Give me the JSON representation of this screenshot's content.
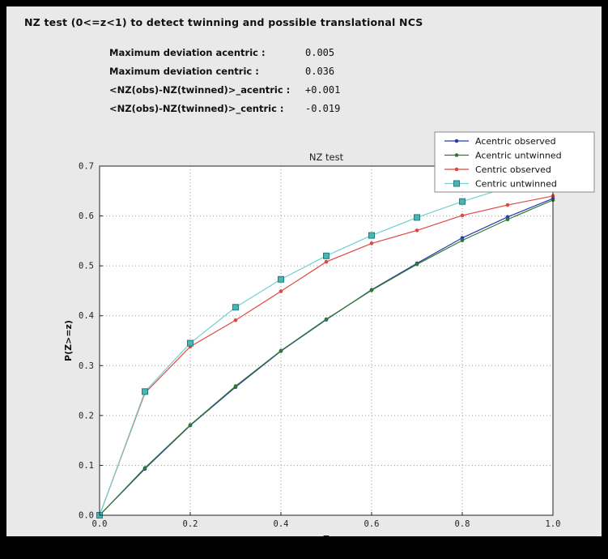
{
  "header": {
    "title": "NZ test (0<=z<1) to detect twinning and possible translational NCS"
  },
  "stats": [
    {
      "label": "Maximum deviation acentric :",
      "value": "0.005"
    },
    {
      "label": "Maximum deviation centric :",
      "value": "0.036"
    },
    {
      "label": "<NZ(obs)-NZ(twinned)>_acentric :",
      "value": "+0.001"
    },
    {
      "label": "<NZ(obs)-NZ(twinned)>_centric :",
      "value": "-0.019"
    }
  ],
  "chart_data": {
    "type": "line",
    "title": "NZ test",
    "xlabel": "Z",
    "ylabel": "P(Z>=z)",
    "xlim": [
      0.0,
      1.0
    ],
    "ylim": [
      0.0,
      0.7
    ],
    "xticks": [
      0.0,
      0.2,
      0.4,
      0.6,
      0.8,
      1.0
    ],
    "yticks": [
      0.0,
      0.1,
      0.2,
      0.3,
      0.4,
      0.5,
      0.6,
      0.7
    ],
    "grid": true,
    "legend_position": "upper right",
    "plot_bg": "#ffffff",
    "figure_bg": "#e9e9e9",
    "x": [
      0.0,
      0.1,
      0.2,
      0.3,
      0.4,
      0.5,
      0.6,
      0.7,
      0.8,
      0.9,
      1.0
    ],
    "series": [
      {
        "name": "Acentric observed",
        "color": "#2a3ab0",
        "marker": "dot",
        "values": [
          0.0,
          0.093,
          0.18,
          0.257,
          0.329,
          0.392,
          0.452,
          0.505,
          0.556,
          0.598,
          0.635
        ]
      },
      {
        "name": "Acentric untwinned",
        "color": "#2e7a2e",
        "marker": "dot",
        "values": [
          0.0,
          0.095,
          0.181,
          0.259,
          0.33,
          0.393,
          0.451,
          0.503,
          0.551,
          0.593,
          0.632
        ]
      },
      {
        "name": "Centric observed",
        "color": "#e04840",
        "marker": "dot",
        "values": [
          0.0,
          0.245,
          0.338,
          0.391,
          0.449,
          0.508,
          0.545,
          0.571,
          0.601,
          0.622,
          0.64
        ]
      },
      {
        "name": "Centric untwinned",
        "color": "#72d0d0",
        "marker": "square",
        "marker_fill": "#4db3b3",
        "marker_edge": "#1f7f7f",
        "values": [
          0.0,
          0.248,
          0.345,
          0.417,
          0.473,
          0.52,
          0.561,
          0.597,
          0.629,
          0.657,
          0.683
        ]
      }
    ]
  }
}
